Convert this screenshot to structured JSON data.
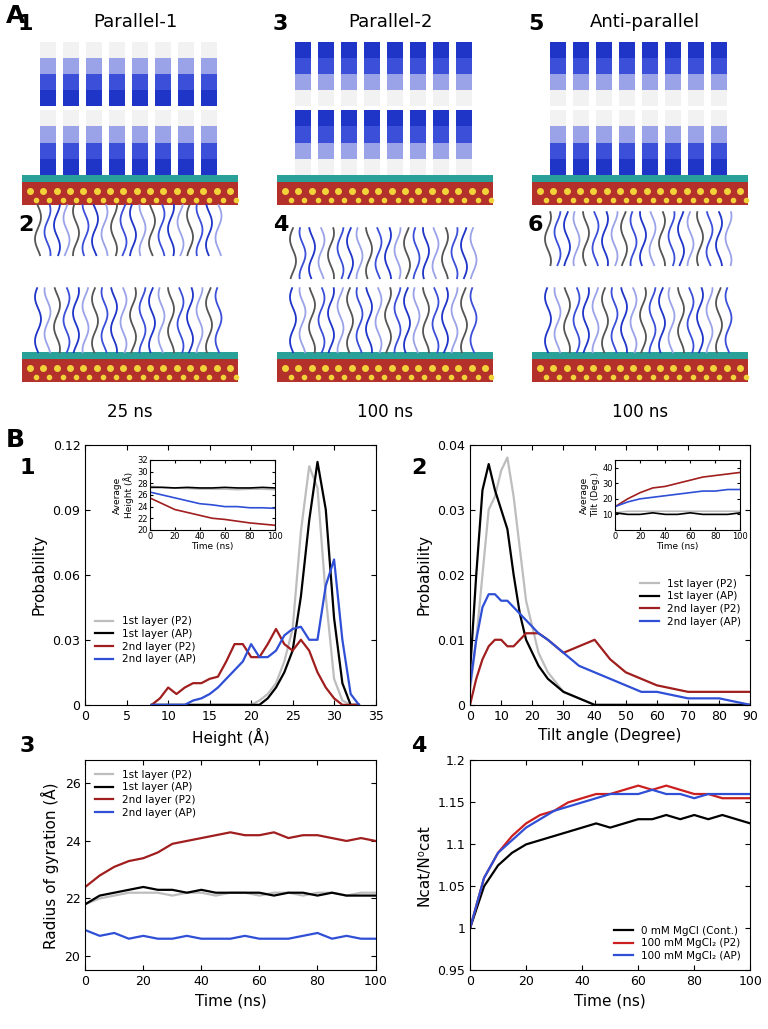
{
  "panel_labels": [
    "A",
    "B"
  ],
  "panel_a": {
    "structures": [
      {
        "number": "1",
        "title": "Parallel-1"
      },
      {
        "number": "3",
        "title": "Parallel-2"
      },
      {
        "number": "5",
        "title": "Anti-parallel"
      }
    ],
    "snapshots": [
      {
        "number": "2",
        "time": "25 ns"
      },
      {
        "number": "4",
        "time": "100 ns"
      },
      {
        "number": "6",
        "time": "100 ns"
      }
    ]
  },
  "chart_data": [
    {
      "label": "1",
      "type": "line",
      "x_label": "Height (Å)",
      "y_label": "Probability",
      "xlim": [
        0,
        35
      ],
      "xticks": [
        0,
        5,
        10,
        15,
        20,
        25,
        30,
        35
      ],
      "ylim": [
        0,
        0.12
      ],
      "yticks": [
        0,
        0.03,
        0.06,
        0.09,
        0.12
      ],
      "legend": "lower left",
      "x": [
        8,
        9,
        10,
        11,
        12,
        13,
        14,
        15,
        16,
        17,
        18,
        19,
        20,
        21,
        22,
        23,
        24,
        25,
        26,
        27,
        28,
        29,
        30,
        31,
        32,
        33
      ],
      "series": [
        {
          "name": "1st layer (P2)",
          "color": "#bdbdbd",
          "values": [
            0,
            0,
            0,
            0,
            0,
            0,
            0,
            0,
            0,
            0,
            0,
            0,
            0,
            0.002,
            0.005,
            0.01,
            0.02,
            0.035,
            0.08,
            0.11,
            0.1,
            0.05,
            0.012,
            0.002,
            0,
            0
          ]
        },
        {
          "name": "1st layer (AP)",
          "color": "#000000",
          "values": [
            0,
            0,
            0,
            0,
            0,
            0,
            0,
            0,
            0,
            0,
            0,
            0,
            0,
            0,
            0.003,
            0.008,
            0.015,
            0.025,
            0.05,
            0.085,
            0.112,
            0.09,
            0.04,
            0.01,
            0,
            0
          ]
        },
        {
          "name": "2nd layer (P2)",
          "color": "#a01e1e",
          "values": [
            0,
            0.003,
            0.008,
            0.005,
            0.008,
            0.01,
            0.01,
            0.012,
            0.013,
            0.02,
            0.028,
            0.028,
            0.022,
            0.022,
            0.028,
            0.035,
            0.028,
            0.025,
            0.03,
            0.025,
            0.015,
            0.008,
            0.003,
            0,
            0,
            0
          ]
        },
        {
          "name": "2nd layer (AP)",
          "color": "#2f4fd6",
          "values": [
            0,
            0,
            0,
            0,
            0,
            0.002,
            0.003,
            0.005,
            0.008,
            0.012,
            0.016,
            0.02,
            0.028,
            0.022,
            0.022,
            0.025,
            0.032,
            0.035,
            0.036,
            0.03,
            0.03,
            0.055,
            0.067,
            0.03,
            0.005,
            0
          ]
        }
      ],
      "inset": {
        "type": "line",
        "x_label": "Time (ns)",
        "y_label": "Average\nHeight (Å)",
        "xlim": [
          0,
          100
        ],
        "xticks": [
          0,
          20,
          40,
          60,
          80,
          100
        ],
        "ylim": [
          20,
          32
        ],
        "yticks": [
          20,
          22,
          24,
          26,
          28,
          30,
          32
        ],
        "x": [
          0,
          10,
          20,
          30,
          40,
          50,
          60,
          70,
          80,
          90,
          100
        ],
        "series": [
          {
            "color": "#bdbdbd",
            "values": [
              27.5,
              27.3,
              27.2,
              27.1,
              27.0,
              27.0,
              27.0,
              26.9,
              27.0,
              27.0,
              26.9
            ]
          },
          {
            "color": "#000000",
            "values": [
              27.3,
              27.3,
              27.2,
              27.3,
              27.2,
              27.2,
              27.3,
              27.2,
              27.2,
              27.3,
              27.2
            ]
          },
          {
            "color": "#a01e1e",
            "values": [
              25.5,
              24.5,
              23.5,
              23.0,
              22.5,
              22.0,
              21.8,
              21.5,
              21.2,
              21.0,
              20.8
            ]
          },
          {
            "color": "#2f4fd6",
            "values": [
              26.5,
              26.0,
              25.5,
              25.0,
              24.5,
              24.3,
              24.0,
              24.0,
              23.8,
              23.8,
              23.7
            ]
          }
        ]
      }
    },
    {
      "label": "2",
      "type": "line",
      "x_label": "Tilt angle (Degree)",
      "y_label": "Probability",
      "xlim": [
        0,
        90
      ],
      "xticks": [
        0,
        10,
        20,
        30,
        40,
        50,
        60,
        70,
        80,
        90
      ],
      "ylim": [
        0,
        0.04
      ],
      "yticks": [
        0,
        0.01,
        0.02,
        0.03,
        0.04
      ],
      "legend": "upper right",
      "x": [
        0,
        2,
        4,
        6,
        8,
        10,
        12,
        14,
        16,
        18,
        20,
        22,
        25,
        30,
        35,
        40,
        45,
        50,
        55,
        60,
        70,
        80,
        90
      ],
      "series": [
        {
          "name": "1st layer (P2)",
          "color": "#bdbdbd",
          "values": [
            0.002,
            0.01,
            0.02,
            0.03,
            0.032,
            0.036,
            0.038,
            0.032,
            0.024,
            0.016,
            0.012,
            0.008,
            0.005,
            0.002,
            0.001,
            0,
            0,
            0,
            0,
            0,
            0,
            0,
            0
          ]
        },
        {
          "name": "1st layer (AP)",
          "color": "#000000",
          "values": [
            0.005,
            0.02,
            0.033,
            0.037,
            0.033,
            0.03,
            0.027,
            0.02,
            0.014,
            0.01,
            0.008,
            0.006,
            0.004,
            0.002,
            0.001,
            0,
            0,
            0,
            0,
            0,
            0,
            0,
            0
          ]
        },
        {
          "name": "2nd layer (P2)",
          "color": "#a01e1e",
          "values": [
            0,
            0.004,
            0.007,
            0.009,
            0.01,
            0.01,
            0.009,
            0.009,
            0.01,
            0.011,
            0.011,
            0.011,
            0.01,
            0.008,
            0.009,
            0.01,
            0.007,
            0.005,
            0.004,
            0.003,
            0.002,
            0.002,
            0.002
          ]
        },
        {
          "name": "2nd layer (AP)",
          "color": "#2f4fd6",
          "values": [
            0.003,
            0.01,
            0.015,
            0.017,
            0.017,
            0.016,
            0.016,
            0.015,
            0.014,
            0.013,
            0.012,
            0.011,
            0.01,
            0.008,
            0.006,
            0.005,
            0.004,
            0.003,
            0.002,
            0.002,
            0.001,
            0.001,
            0
          ]
        }
      ],
      "inset": {
        "type": "line",
        "x_label": "Time (ns)",
        "y_label": "Average\nTilt (Deg.)",
        "xlim": [
          0,
          100
        ],
        "xticks": [
          0,
          20,
          40,
          60,
          80,
          100
        ],
        "ylim": [
          0,
          45
        ],
        "yticks": [
          10,
          20,
          30,
          40
        ],
        "x": [
          0,
          10,
          20,
          30,
          40,
          50,
          60,
          70,
          80,
          90,
          100
        ],
        "series": [
          {
            "color": "#bdbdbd",
            "values": [
              11,
              12,
              12,
              12,
              12,
              12,
              12,
              12,
              12,
              12,
              12
            ]
          },
          {
            "color": "#000000",
            "values": [
              11,
              10,
              10,
              11,
              10,
              10,
              11,
              10,
              10,
              10,
              11
            ]
          },
          {
            "color": "#a01e1e",
            "values": [
              15,
              20,
              24,
              27,
              28,
              30,
              32,
              34,
              35,
              36,
              37
            ]
          },
          {
            "color": "#2f4fd6",
            "values": [
              15,
              18,
              20,
              21,
              22,
              23,
              24,
              25,
              25,
              26,
              26
            ]
          }
        ]
      }
    },
    {
      "label": "3",
      "type": "line",
      "x_label": "Time (ns)",
      "y_label": "Radius of gyration (Å)",
      "xlim": [
        0,
        100
      ],
      "xticks": [
        0,
        20,
        40,
        60,
        80,
        100
      ],
      "ylim": [
        19.5,
        26.8
      ],
      "yticks": [
        20,
        22,
        24,
        26
      ],
      "legend": "upper left",
      "x": [
        0,
        5,
        10,
        15,
        20,
        25,
        30,
        35,
        40,
        45,
        50,
        55,
        60,
        65,
        70,
        75,
        80,
        85,
        90,
        95,
        100
      ],
      "series": [
        {
          "name": "1st layer (P2)",
          "color": "#bdbdbd",
          "values": [
            21.8,
            22.0,
            22.1,
            22.2,
            22.2,
            22.2,
            22.1,
            22.2,
            22.2,
            22.1,
            22.2,
            22.2,
            22.1,
            22.2,
            22.2,
            22.1,
            22.2,
            22.2,
            22.1,
            22.2,
            22.2
          ]
        },
        {
          "name": "1st layer (AP)",
          "color": "#000000",
          "values": [
            21.8,
            22.1,
            22.2,
            22.3,
            22.4,
            22.3,
            22.3,
            22.2,
            22.3,
            22.2,
            22.2,
            22.2,
            22.2,
            22.1,
            22.2,
            22.2,
            22.1,
            22.2,
            22.1,
            22.1,
            22.1
          ]
        },
        {
          "name": "2nd layer (P2)",
          "color": "#a01e1e",
          "values": [
            22.4,
            22.8,
            23.1,
            23.3,
            23.4,
            23.6,
            23.9,
            24.0,
            24.1,
            24.2,
            24.3,
            24.2,
            24.2,
            24.3,
            24.1,
            24.2,
            24.2,
            24.1,
            24.0,
            24.1,
            24.0
          ]
        },
        {
          "name": "2nd layer (AP)",
          "color": "#2f4fd6",
          "values": [
            20.9,
            20.7,
            20.8,
            20.6,
            20.7,
            20.6,
            20.6,
            20.7,
            20.6,
            20.6,
            20.6,
            20.7,
            20.6,
            20.6,
            20.6,
            20.7,
            20.8,
            20.6,
            20.7,
            20.6,
            20.6
          ]
        }
      ]
    },
    {
      "label": "4",
      "type": "line",
      "x_label": "Time (ns)",
      "y_label": "Ncat/N⁰cat",
      "xlim": [
        0,
        100
      ],
      "xticks": [
        0,
        20,
        40,
        60,
        80,
        100
      ],
      "ylim": [
        0.95,
        1.2
      ],
      "yticks": [
        0.95,
        1,
        1.05,
        1.1,
        1.15,
        1.2
      ],
      "legend": "lower right",
      "x": [
        0,
        5,
        10,
        15,
        20,
        25,
        30,
        35,
        40,
        45,
        50,
        55,
        60,
        65,
        70,
        75,
        80,
        85,
        90,
        95,
        100
      ],
      "series": [
        {
          "name": "0 mM MgCl (Cont.)",
          "color": "#000000",
          "values": [
            1.0,
            1.05,
            1.075,
            1.09,
            1.1,
            1.105,
            1.11,
            1.115,
            1.12,
            1.125,
            1.12,
            1.125,
            1.13,
            1.13,
            1.135,
            1.13,
            1.135,
            1.13,
            1.135,
            1.13,
            1.125
          ]
        },
        {
          "name": "100 mM MgCl₂ (P2)",
          "color": "#cc1f1f",
          "values": [
            1.0,
            1.06,
            1.09,
            1.11,
            1.125,
            1.135,
            1.14,
            1.15,
            1.155,
            1.16,
            1.16,
            1.165,
            1.17,
            1.165,
            1.17,
            1.165,
            1.16,
            1.16,
            1.155,
            1.155,
            1.155
          ]
        },
        {
          "name": "100 mM MgCl₂ (AP)",
          "color": "#2f4fd6",
          "values": [
            1.0,
            1.06,
            1.09,
            1.105,
            1.12,
            1.13,
            1.14,
            1.145,
            1.15,
            1.155,
            1.16,
            1.16,
            1.16,
            1.165,
            1.16,
            1.16,
            1.155,
            1.16,
            1.16,
            1.16,
            1.16
          ]
        }
      ]
    }
  ]
}
